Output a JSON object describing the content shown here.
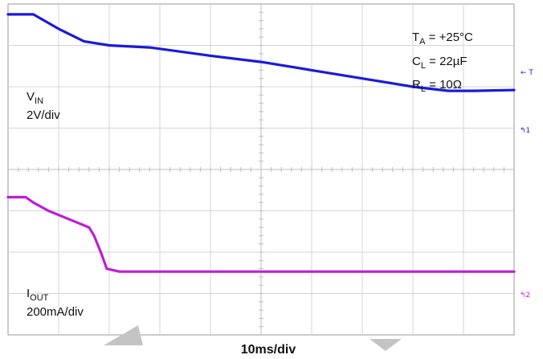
{
  "annotations": {
    "ta_main": "T",
    "ta_sub": "A",
    "ta_rest": " = +25°C",
    "cl_main": "C",
    "cl_sub": "L",
    "cl_rest": " = 22µF",
    "rl_main": "R",
    "rl_sub": "L",
    "rl_rest": " = 10Ω"
  },
  "channels": {
    "vin": {
      "label_main": "V",
      "label_sub": "IN",
      "scale": "2V/div",
      "color": "#1a1adb"
    },
    "iout": {
      "label_main": "I",
      "label_sub": "OUT",
      "scale": "200mA/div",
      "color": "#c01cd6"
    }
  },
  "xlabel": "10ms/div",
  "markers": {
    "trigger": "T",
    "ch1": "1",
    "ch2": "2"
  },
  "chart_data": {
    "type": "line",
    "xlabel": "10ms/div",
    "x_unit": "div",
    "y_unit": "div",
    "xlim": [
      0,
      10
    ],
    "ylim": [
      0,
      8
    ],
    "grid": true,
    "series": [
      {
        "name": "VIN",
        "scale": "2V/div",
        "x": [
          0,
          0.5,
          1,
          1.5,
          2,
          2.8,
          4,
          5,
          6,
          7,
          8,
          8.7,
          9.2,
          10
        ],
        "y": [
          7.75,
          7.75,
          7.4,
          7.1,
          7.0,
          6.95,
          6.75,
          6.6,
          6.4,
          6.2,
          6.0,
          5.9,
          5.9,
          5.92
        ]
      },
      {
        "name": "IOUT",
        "scale": "200mA/div",
        "x": [
          0,
          0.35,
          0.5,
          0.8,
          1.2,
          1.6,
          1.7,
          1.85,
          1.95,
          2.2,
          3,
          5,
          7,
          10
        ],
        "y": [
          3.33,
          3.33,
          3.2,
          3.0,
          2.8,
          2.6,
          2.4,
          1.95,
          1.6,
          1.53,
          1.53,
          1.53,
          1.53,
          1.53
        ]
      }
    ]
  }
}
